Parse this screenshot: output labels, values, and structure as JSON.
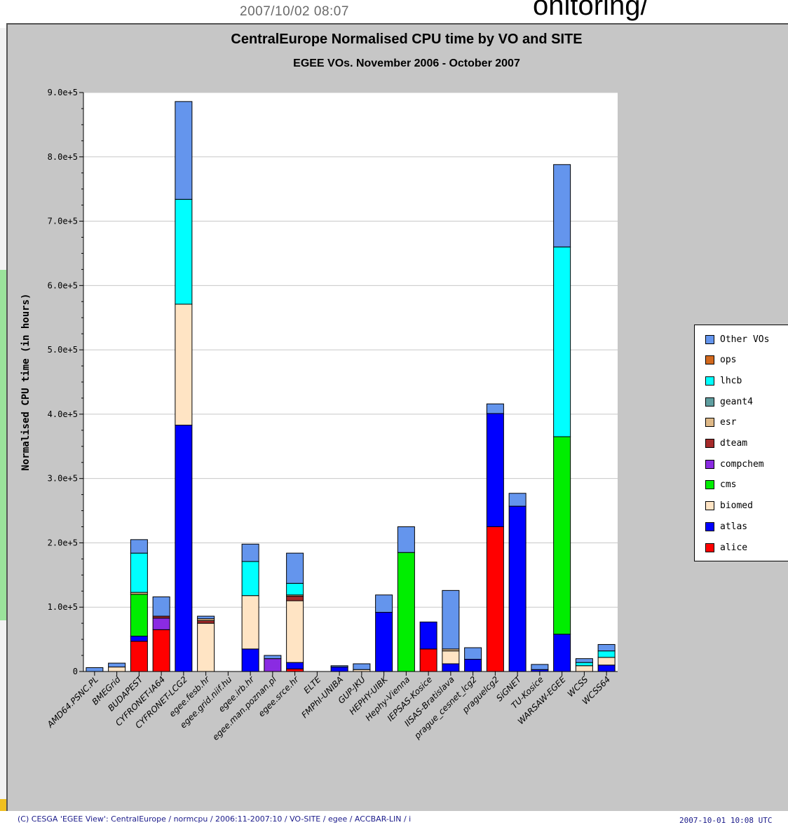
{
  "slide": {
    "timestamp": "2007/10/02 08:07",
    "heading_fragment": "onitoring/"
  },
  "chart_data": {
    "type": "bar",
    "stacked": true,
    "title": "CentralEurope Normalised CPU time by VO and SITE",
    "subtitle": "EGEE VOs. November 2006 - October 2007",
    "ylabel": "Normalised CPU time (in hours)",
    "xlabel": "",
    "ylim": [
      0,
      900000
    ],
    "yticks": [
      0,
      100000,
      200000,
      300000,
      400000,
      500000,
      600000,
      700000,
      800000,
      900000
    ],
    "ytick_labels": [
      "0",
      "1.0e+5",
      "2.0e+5",
      "3.0e+5",
      "4.0e+5",
      "5.0e+5",
      "6.0e+5",
      "7.0e+5",
      "8.0e+5",
      "9.0e+5"
    ],
    "grid": true,
    "legend_position": "right",
    "categories": [
      "AMD64.PSNC.PL",
      "BMEGrid",
      "BUDAPEST",
      "CYFRONET-IA64",
      "CYFRONET-LCG2",
      "egee.fesb.hr",
      "egee.grid.niif.hu",
      "egee.irb.hr",
      "egee.man.poznan.pl",
      "egee.srce.hr",
      "ELTE",
      "FMPhI-UNIBA",
      "GUP-JKU",
      "HEPHY-UIBK",
      "Hephy-Vienna",
      "IEPSAS-Kosice",
      "IISAS-Bratislava",
      "prague_cesnet_lcg2",
      "praguelcg2",
      "SiGNET",
      "TU-Kosice",
      "WARSAW-EGEE",
      "WCSS",
      "WCSS64"
    ],
    "series": [
      {
        "name": "alice",
        "color": "#ff0000",
        "values": [
          0,
          0,
          47000,
          65000,
          0,
          0,
          0,
          0,
          0,
          4000,
          0,
          0,
          0,
          0,
          0,
          35000,
          0,
          0,
          225000,
          0,
          0,
          0,
          0,
          0
        ]
      },
      {
        "name": "atlas",
        "color": "#0000ff",
        "values": [
          0,
          0,
          8000,
          0,
          383000,
          0,
          0,
          35000,
          0,
          10000,
          0,
          7000,
          0,
          92000,
          0,
          42000,
          12000,
          19000,
          176000,
          257000,
          3000,
          58000,
          0,
          10000
        ]
      },
      {
        "name": "biomed",
        "color": "#ffe4c4",
        "values": [
          0,
          7000,
          0,
          0,
          188000,
          75000,
          0,
          83000,
          0,
          96000,
          0,
          0,
          3000,
          0,
          0,
          0,
          20000,
          0,
          0,
          0,
          0,
          0,
          9000,
          12000
        ]
      },
      {
        "name": "cms",
        "color": "#00ee00",
        "values": [
          0,
          0,
          65000,
          0,
          0,
          0,
          0,
          0,
          0,
          0,
          0,
          0,
          0,
          0,
          185000,
          0,
          0,
          0,
          0,
          0,
          0,
          307000,
          0,
          0
        ]
      },
      {
        "name": "compchem",
        "color": "#8a2be2",
        "values": [
          0,
          0,
          0,
          18000,
          0,
          0,
          0,
          0,
          20000,
          0,
          0,
          0,
          0,
          0,
          0,
          0,
          0,
          0,
          0,
          0,
          0,
          0,
          0,
          0
        ]
      },
      {
        "name": "dteam",
        "color": "#a52a2a",
        "values": [
          0,
          0,
          0,
          3000,
          0,
          4000,
          0,
          0,
          0,
          7000,
          0,
          0,
          0,
          0,
          0,
          0,
          0,
          0,
          0,
          0,
          0,
          0,
          0,
          0
        ]
      },
      {
        "name": "esr",
        "color": "#deb887",
        "values": [
          0,
          0,
          3000,
          0,
          0,
          3000,
          0,
          0,
          0,
          2000,
          0,
          0,
          0,
          0,
          0,
          0,
          3000,
          0,
          0,
          0,
          0,
          0,
          0,
          0
        ]
      },
      {
        "name": "geant4",
        "color": "#5f9ea0",
        "values": [
          0,
          0,
          0,
          0,
          0,
          0,
          0,
          0,
          0,
          0,
          0,
          0,
          0,
          0,
          0,
          0,
          0,
          0,
          0,
          0,
          0,
          0,
          0,
          0
        ]
      },
      {
        "name": "lhcb",
        "color": "#00ffff",
        "values": [
          0,
          0,
          61000,
          0,
          163000,
          0,
          0,
          53000,
          0,
          18000,
          0,
          0,
          0,
          0,
          0,
          0,
          0,
          0,
          0,
          0,
          0,
          295000,
          5000,
          10000
        ]
      },
      {
        "name": "ops",
        "color": "#d2691e",
        "values": [
          0,
          0,
          0,
          0,
          0,
          0,
          0,
          0,
          0,
          0,
          0,
          0,
          0,
          0,
          0,
          0,
          0,
          0,
          0,
          0,
          0,
          0,
          0,
          0
        ]
      },
      {
        "name": "Other VOs",
        "color": "#6495ed",
        "values": [
          6000,
          6000,
          21000,
          30000,
          152000,
          4000,
          0,
          27000,
          5000,
          47000,
          0,
          2000,
          9000,
          27000,
          40000,
          0,
          91000,
          18000,
          15000,
          20000,
          8000,
          128000,
          6000,
          10000
        ]
      }
    ],
    "legend_order": [
      "Other VOs",
      "ops",
      "lhcb",
      "geant4",
      "esr",
      "dteam",
      "compchem",
      "cms",
      "biomed",
      "atlas",
      "alice"
    ]
  },
  "footer": {
    "source": "(C) CESGA 'EGEE View': CentralEurope / normcpu / 2006:11-2007:10 / VO-SITE / egee / ACCBAR-LIN / i",
    "generated": "2007-10-01 10:08 UTC"
  }
}
